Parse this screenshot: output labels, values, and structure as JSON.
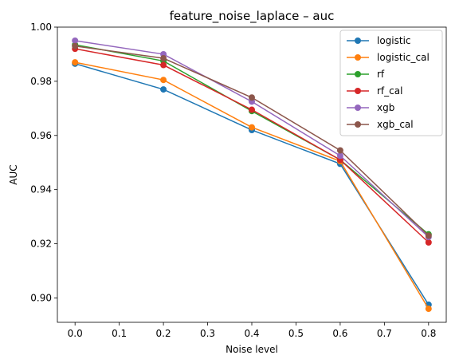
{
  "chart_data": {
    "type": "line",
    "title": "feature_noise_laplace – auc",
    "xlabel": "Noise level",
    "ylabel": "AUC",
    "xlim": [
      -0.04,
      0.84
    ],
    "ylim": [
      0.891,
      1.0
    ],
    "xticks": [
      0.0,
      0.1,
      0.2,
      0.3,
      0.4,
      0.5,
      0.6,
      0.7,
      0.8
    ],
    "xtick_labels": [
      "0.0",
      "0.1",
      "0.2",
      "0.3",
      "0.4",
      "0.5",
      "0.6",
      "0.7",
      "0.8"
    ],
    "yticks": [
      0.9,
      0.92,
      0.94,
      0.96,
      0.98,
      1.0
    ],
    "ytick_labels": [
      "0.90",
      "0.92",
      "0.94",
      "0.96",
      "0.98",
      "1.00"
    ],
    "x": [
      0.0,
      0.2,
      0.4,
      0.6,
      0.8
    ],
    "grid": false,
    "legend_position": "top-right",
    "series": [
      {
        "name": "logistic",
        "color": "#1f77b4",
        "values": [
          0.9865,
          0.977,
          0.962,
          0.9495,
          0.8975
        ]
      },
      {
        "name": "logistic_cal",
        "color": "#ff7f0e",
        "values": [
          0.987,
          0.9805,
          0.963,
          0.9505,
          0.896
        ]
      },
      {
        "name": "rf",
        "color": "#2ca02c",
        "values": [
          0.9935,
          0.9875,
          0.969,
          0.951,
          0.9235
        ]
      },
      {
        "name": "rf_cal",
        "color": "#d62728",
        "values": [
          0.992,
          0.986,
          0.9695,
          0.951,
          0.9205
        ]
      },
      {
        "name": "xgb",
        "color": "#9467bd",
        "values": [
          0.995,
          0.99,
          0.9725,
          0.9525,
          0.9225
        ]
      },
      {
        "name": "xgb_cal",
        "color": "#8c564b",
        "values": [
          0.993,
          0.9885,
          0.974,
          0.9545,
          0.923
        ]
      }
    ]
  }
}
